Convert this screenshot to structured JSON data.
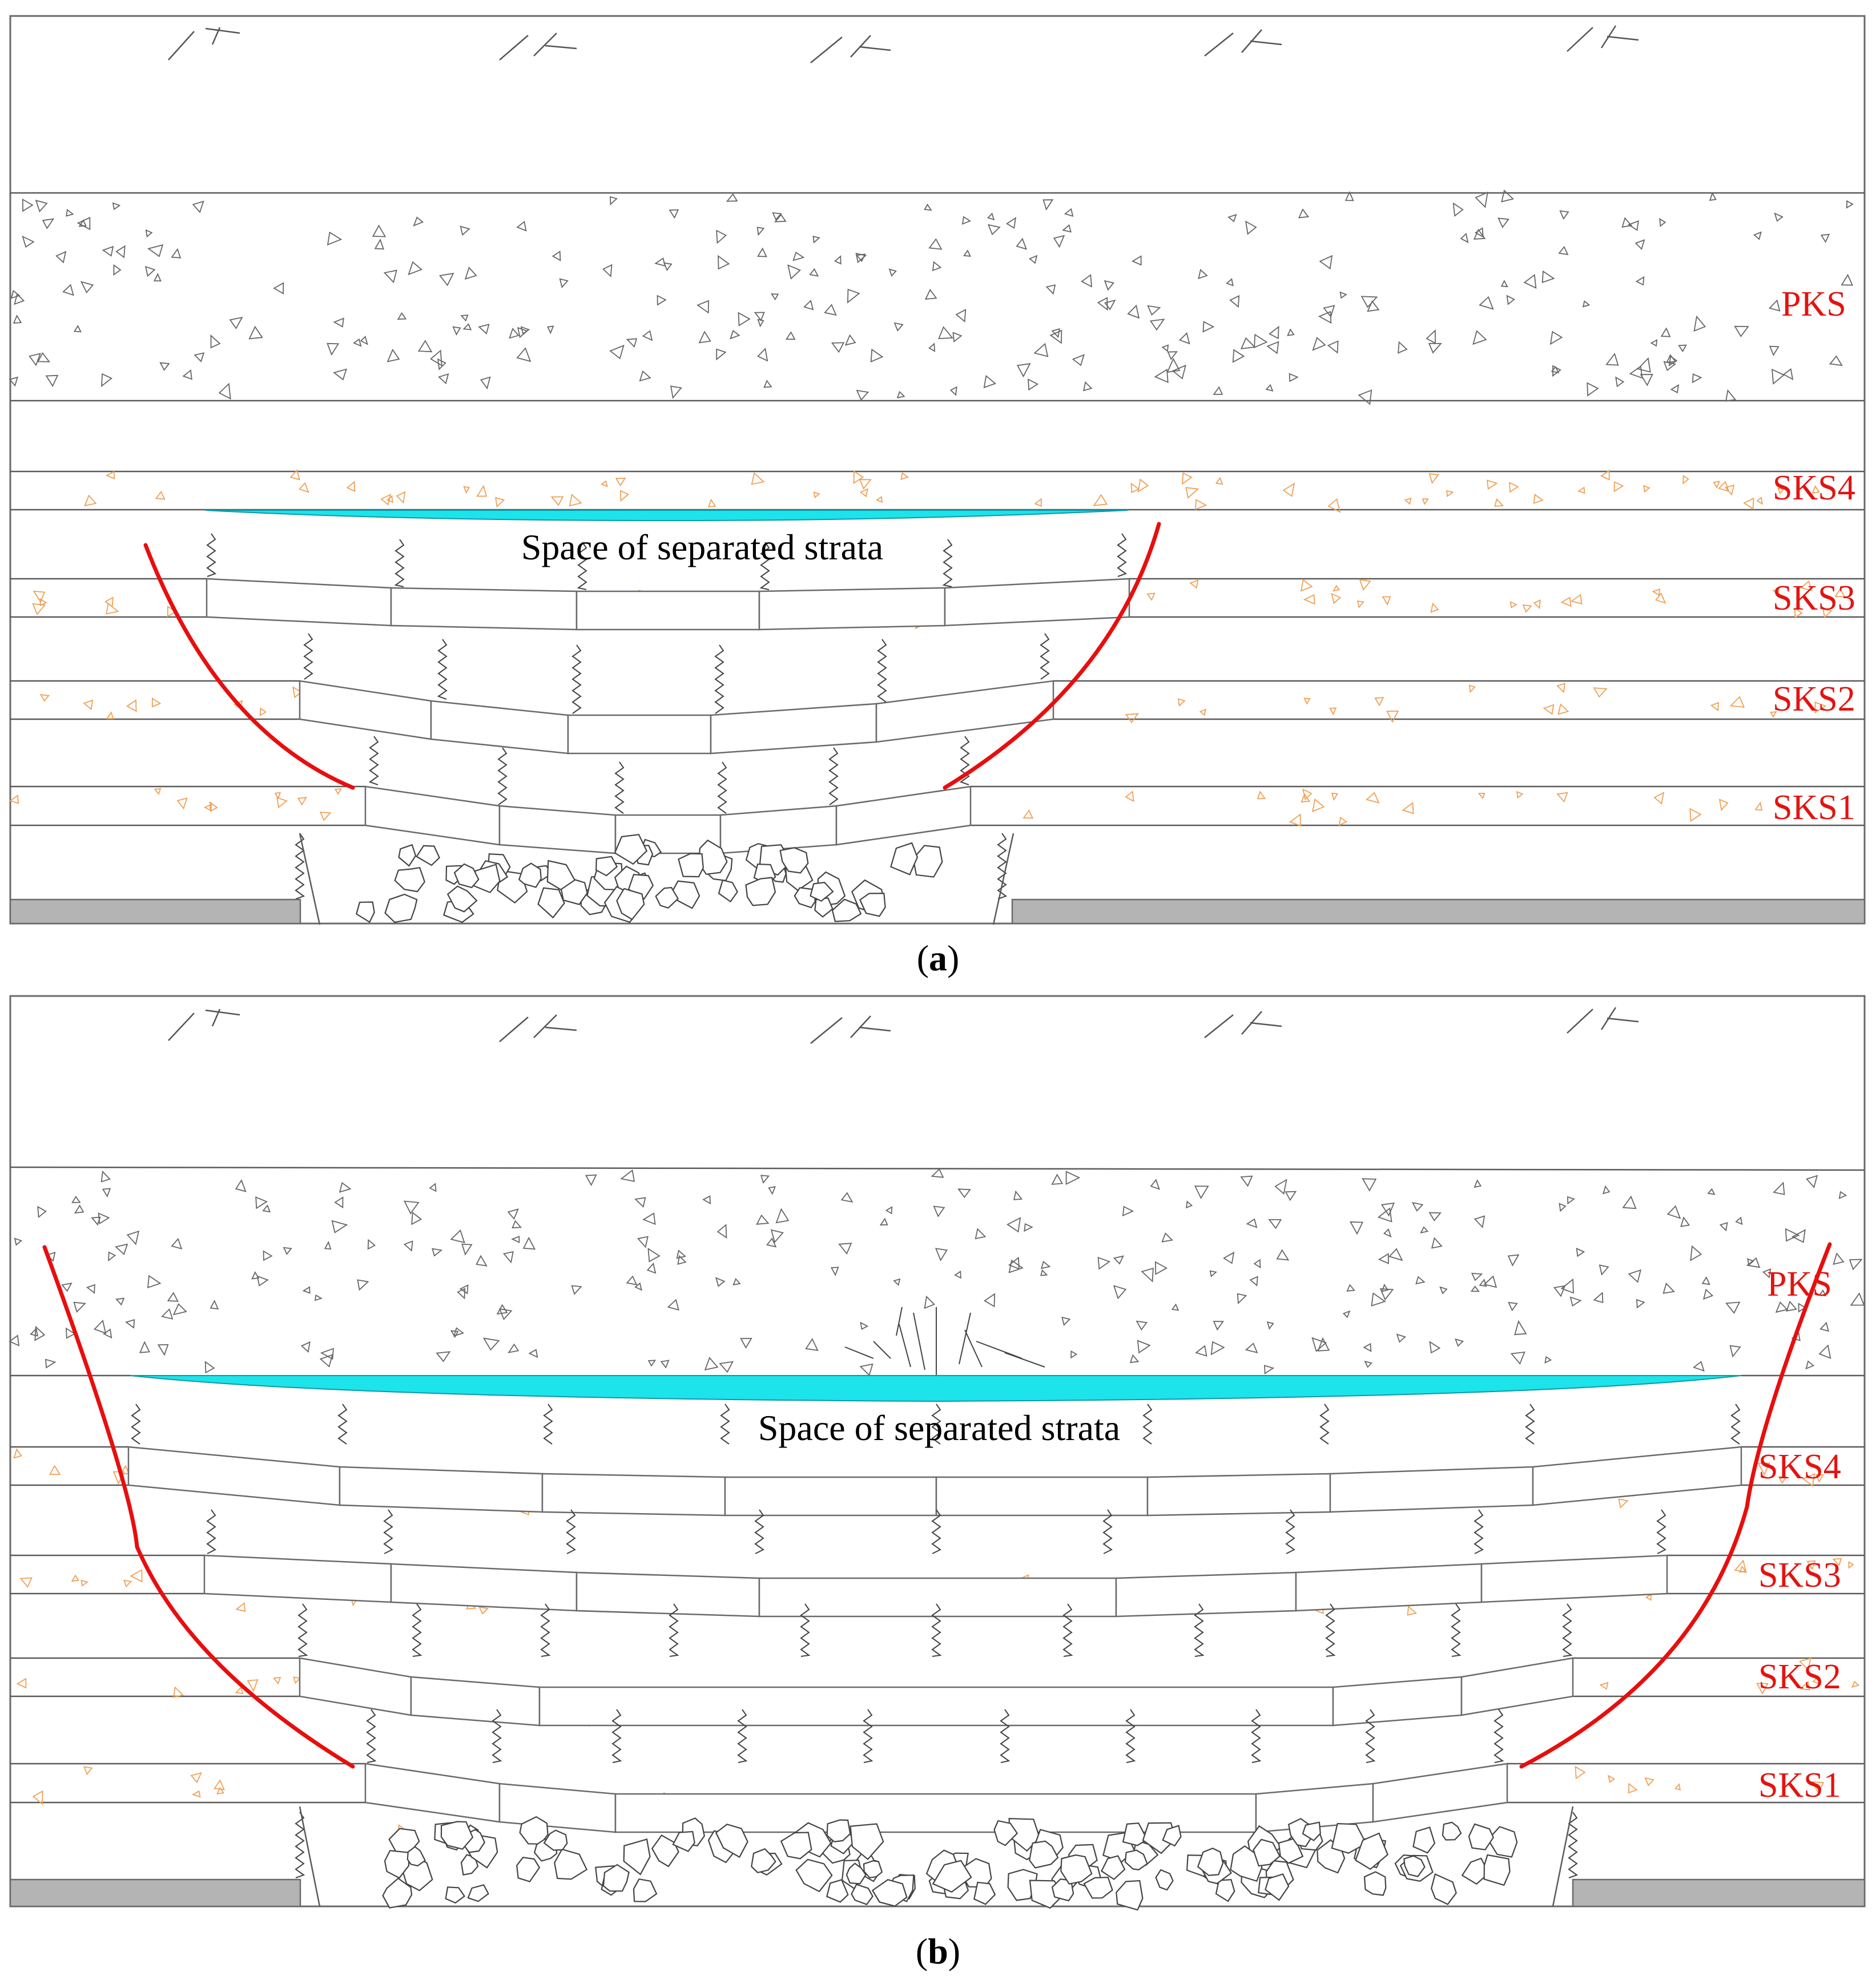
{
  "panels": [
    {
      "id": "a",
      "caption": "a",
      "annotation": "Space of separated strata",
      "stratum_labels": [
        "PKS",
        "SKS4",
        "SKS3",
        "SKS2",
        "SKS1"
      ]
    },
    {
      "id": "b",
      "caption": "b",
      "annotation": "Space of separated strata",
      "stratum_labels": [
        "PKS",
        "SKS4",
        "SKS3",
        "SKS2",
        "SKS1"
      ]
    }
  ],
  "colors": {
    "label": "#e3130f",
    "fault_line": "#e80e0e",
    "separation_gap": "#1de3ea",
    "pillar": "#b4b4b4",
    "key_stratum_marks": "#f0a055"
  }
}
